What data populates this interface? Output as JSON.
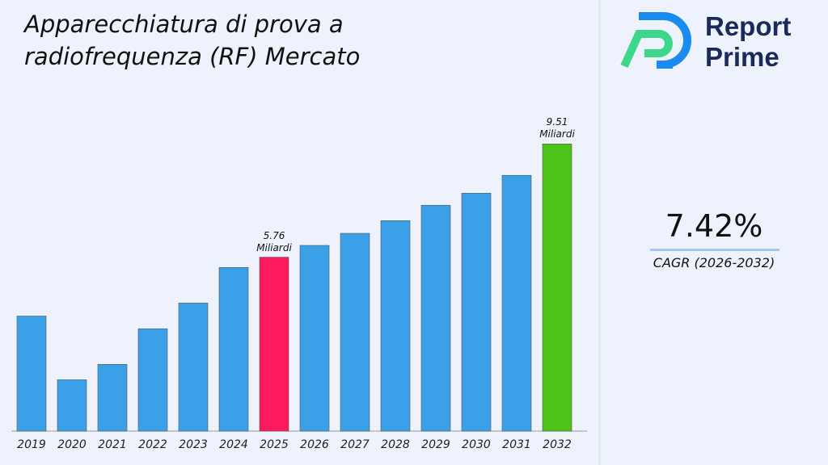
{
  "chart_data": {
    "type": "bar",
    "title": "Apparecchiatura di prova a radiofrequenza (RF) Mercato",
    "categories": [
      "2019",
      "2020",
      "2021",
      "2022",
      "2023",
      "2024",
      "2025",
      "2026",
      "2027",
      "2028",
      "2029",
      "2030",
      "2031",
      "2032"
    ],
    "values": [
      3.81,
      1.7,
      2.21,
      3.39,
      4.24,
      5.42,
      5.76,
      6.15,
      6.55,
      6.97,
      7.48,
      7.88,
      8.47,
      9.51
    ],
    "value_labels": [
      null,
      null,
      null,
      null,
      null,
      null,
      "5.76 Miliardi",
      null,
      null,
      null,
      null,
      null,
      null,
      "9.51 Miliardi"
    ],
    "colors": [
      "#3aa0e8",
      "#3aa0e8",
      "#3aa0e8",
      "#3aa0e8",
      "#3aa0e8",
      "#3aa0e8",
      "#ff1a5e",
      "#3aa0e8",
      "#3aa0e8",
      "#3aa0e8",
      "#3aa0e8",
      "#3aa0e8",
      "#3aa0e8",
      "#4cc417"
    ],
    "ylim": [
      0,
      10
    ]
  },
  "side": {
    "cagr_value": "7.42%",
    "cagr_label": "CAGR (2026-2032)"
  },
  "logo": {
    "line1": "Report",
    "line2": "Prime"
  }
}
